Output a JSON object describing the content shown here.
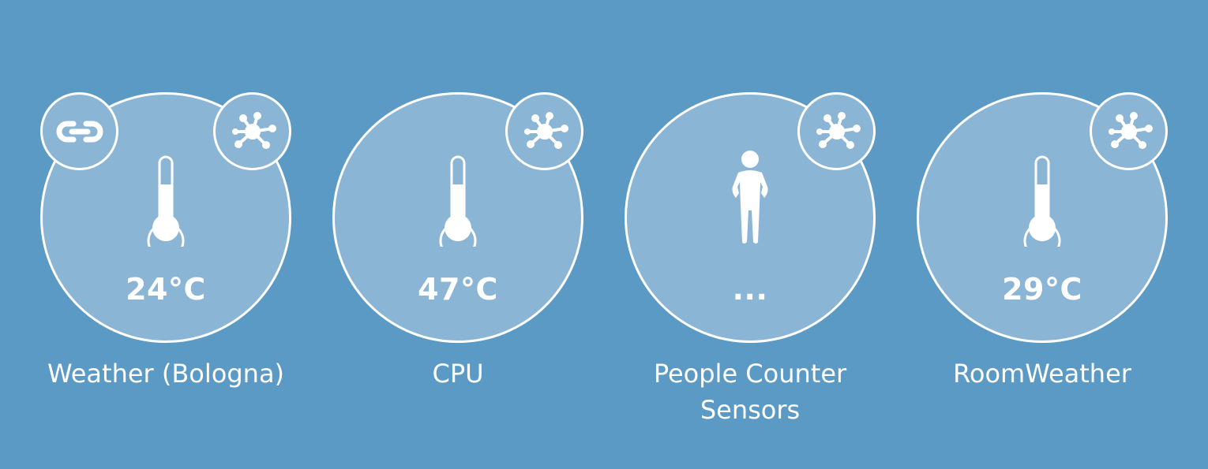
{
  "widgets": [
    {
      "name": "Weather (Bologna)",
      "value": "24°C",
      "icon": "thermometer-icon",
      "badges": [
        "link-icon",
        "network-hub-icon"
      ]
    },
    {
      "name": "CPU",
      "value": "47°C",
      "icon": "thermometer-icon",
      "badges": [
        "network-hub-icon"
      ]
    },
    {
      "name_lines": [
        "People Counter",
        "Sensors"
      ],
      "value": "...",
      "icon": "person-icon",
      "badges": [
        "network-hub-icon"
      ]
    },
    {
      "name": "RoomWeather",
      "value": "29°C",
      "icon": "thermometer-icon",
      "badges": [
        "network-hub-icon"
      ]
    }
  ],
  "colors": {
    "background": "#5b9ac4",
    "bubble_fill": "#8bb5d4",
    "stroke": "#ffffff"
  }
}
